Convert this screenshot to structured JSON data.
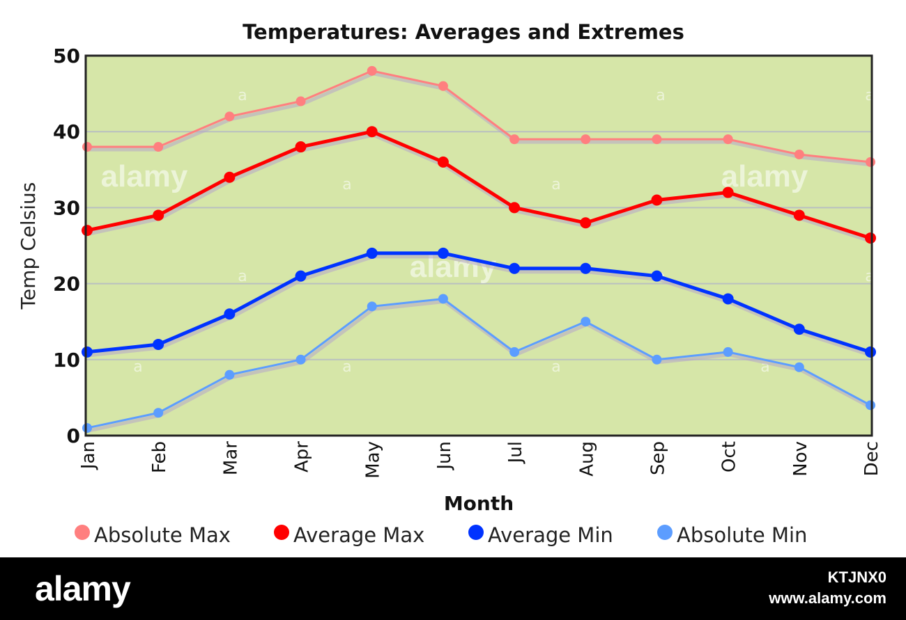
{
  "chart_data": {
    "type": "line",
    "title": "Temperatures: Averages and Extremes",
    "xlabel": "Month",
    "ylabel": "Temp Celsius",
    "categories": [
      "Jan",
      "Feb",
      "Mar",
      "Apr",
      "May",
      "Jun",
      "Jul",
      "Aug",
      "Sep",
      "Oct",
      "Nov",
      "Dec"
    ],
    "ylim": [
      0,
      50
    ],
    "yticks": [
      "0",
      "10",
      "20",
      "30",
      "40",
      "50"
    ],
    "grid": true,
    "legend_position": "bottom",
    "background_color": "#d6e6a8",
    "series": [
      {
        "name": "Absolute Max",
        "color": "#ff7f7f",
        "values": [
          38,
          38,
          42,
          44,
          48,
          46,
          39,
          39,
          39,
          39,
          37,
          36
        ]
      },
      {
        "name": "Average Max",
        "color": "#ff0000",
        "values": [
          27,
          29,
          34,
          38,
          40,
          36,
          30,
          28,
          31,
          32,
          29,
          26
        ]
      },
      {
        "name": "Average Min",
        "color": "#0033ff",
        "values": [
          11,
          12,
          16,
          21,
          24,
          24,
          22,
          22,
          21,
          18,
          14,
          11
        ]
      },
      {
        "name": "Absolute Min",
        "color": "#5c9dff",
        "values": [
          1,
          3,
          8,
          10,
          17,
          18,
          11,
          15,
          10,
          11,
          9,
          4
        ]
      }
    ]
  },
  "watermark": {
    "text": "alamy",
    "letter": "a"
  },
  "footer": {
    "logo": "alamy",
    "image_id": "KTJNX0",
    "url": "www.alamy.com"
  }
}
